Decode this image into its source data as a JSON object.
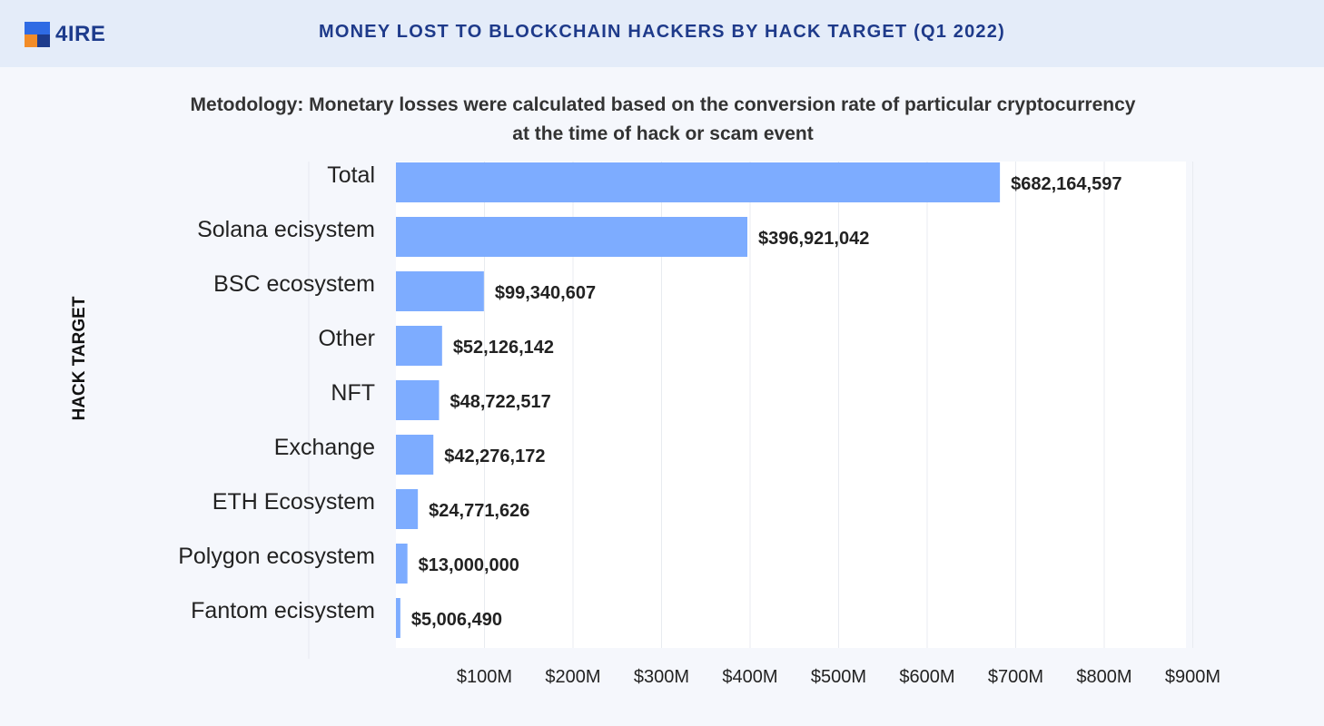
{
  "header": {
    "logo_text": "4IRE",
    "title": "MONEY LOST TO BLOCKCHAIN HACKERS BY HACK TARGET (Q1 2022)"
  },
  "colors": {
    "bar": "#7dacff",
    "header_bg": "#e4ecf9",
    "page_bg": "#f5f7fc",
    "title": "#1e3a8a",
    "logo_blue": "#2f6be4",
    "logo_orange": "#f28c28",
    "logo_navy": "#1d3b8c"
  },
  "chart_data": {
    "type": "bar",
    "orientation": "horizontal",
    "title": "MONEY LOST TO BLOCKCHAIN HACKERS BY HACK TARGET (Q1 2022)",
    "subtitle": "Metodology: Monetary losses were calculated based on the conversion rate of particular cryptocurrency at the time of hack or scam event",
    "ylabel": "HACK TARGET",
    "xlabel": "",
    "categories": [
      "Total",
      "Solana ecisystem",
      "BSC ecosystem",
      "Other",
      "NFT",
      "Exchange",
      "ETH Ecosystem",
      "Polygon ecosystem",
      "Fantom ecisystem"
    ],
    "values": [
      682164597,
      396921042,
      99340607,
      52126142,
      48722517,
      42276172,
      24771626,
      13000000,
      5006490
    ],
    "value_labels": [
      "$682,164,597",
      "$396,921,042",
      "$99,340,607",
      "$52,126,142",
      "$48,722,517",
      "$42,276,172",
      "$24,771,626",
      "$13,000,000",
      "$5,006,490"
    ],
    "xlim": [
      0,
      900000000
    ],
    "x_ticks": [
      100000000,
      200000000,
      300000000,
      400000000,
      500000000,
      600000000,
      700000000,
      800000000,
      900000000
    ],
    "x_tick_labels": [
      "$100M",
      "$200M",
      "$300M",
      "$400M",
      "$500M",
      "$600M",
      "$700M",
      "$800M",
      "$900M"
    ],
    "grid": "vertical",
    "legend": "none"
  }
}
